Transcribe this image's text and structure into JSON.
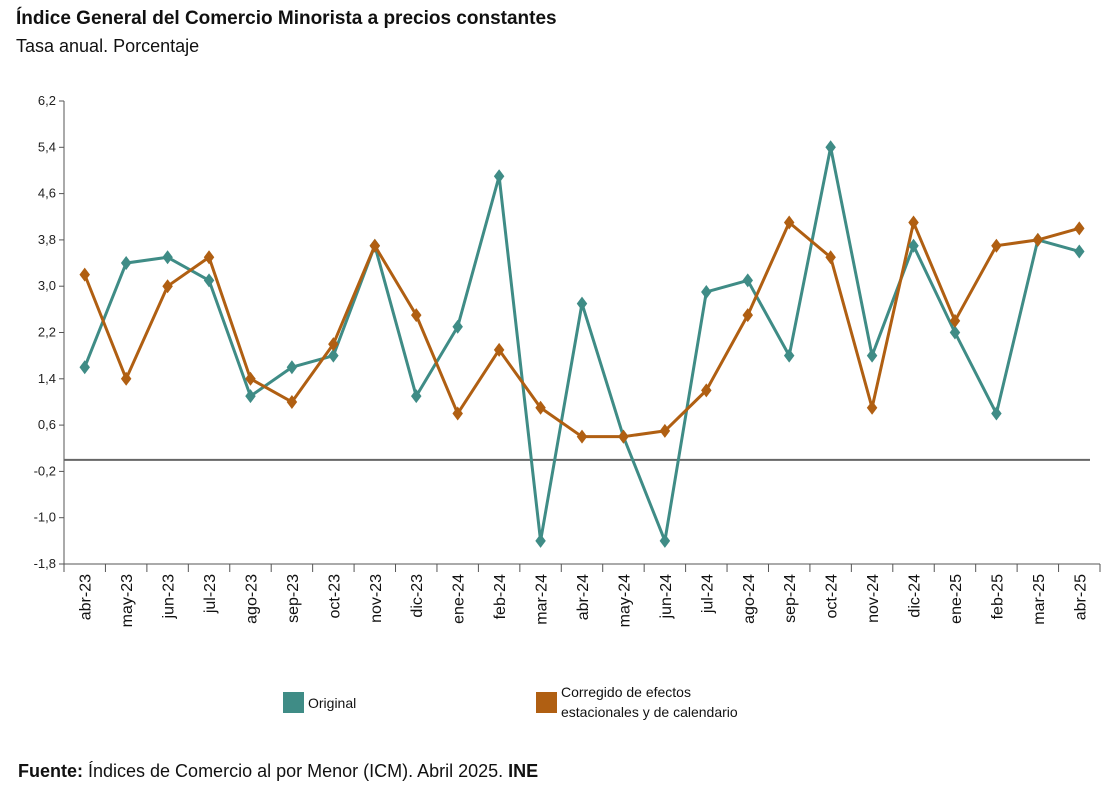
{
  "header": {
    "title": "Índice General del Comercio Minorista a precios constantes",
    "subtitle": "Tasa anual. Porcentaje"
  },
  "colors": {
    "original": "#3f8c86",
    "corrected": "#b05f12",
    "axis": "#555555",
    "zero_line": "#666666"
  },
  "legend": {
    "original": "Original",
    "corrected_line1": "Corregido de efectos",
    "corrected_line2": "estacionales y de calendario"
  },
  "source": {
    "label": "Fuente:",
    "text": " Índices de Comercio al por Menor (ICM).  Abril 2025. ",
    "org": "INE"
  },
  "chart_data": {
    "type": "line",
    "title": "Índice General del Comercio Minorista a precios constantes",
    "ylabel": "Tasa anual. Porcentaje",
    "ylim": [
      -1.8,
      6.2
    ],
    "yticks": [
      "6,2",
      "5,4",
      "4,6",
      "3,8",
      "3,0",
      "2,2",
      "1,4",
      "0,6",
      "-0,2",
      "-1,0",
      "-1,8"
    ],
    "ytick_values": [
      6.2,
      5.4,
      4.6,
      3.8,
      3.0,
      2.2,
      1.4,
      0.6,
      -0.2,
      -1.0,
      -1.8
    ],
    "reference_line": 0,
    "categories": [
      "abr-23",
      "may-23",
      "jun-23",
      "jul-23",
      "ago-23",
      "sep-23",
      "oct-23",
      "nov-23",
      "dic-23",
      "ene-24",
      "feb-24",
      "mar-24",
      "abr-24",
      "may-24",
      "jun-24",
      "jul-24",
      "ago-24",
      "sep-24",
      "oct-24",
      "nov-24",
      "dic-24",
      "ene-25",
      "feb-25",
      "mar-25",
      "abr-25"
    ],
    "series": [
      {
        "name": "Original",
        "values": [
          1.6,
          3.4,
          3.5,
          3.1,
          1.1,
          1.6,
          1.8,
          3.7,
          1.1,
          2.3,
          4.9,
          -1.4,
          2.7,
          0.4,
          -1.4,
          2.9,
          3.1,
          1.8,
          5.4,
          1.8,
          3.7,
          2.2,
          0.8,
          3.8,
          3.6
        ]
      },
      {
        "name": "Corregido de efectos estacionales y de calendario",
        "values": [
          3.2,
          1.4,
          3.0,
          3.5,
          1.4,
          1.0,
          2.0,
          3.7,
          2.5,
          0.8,
          1.9,
          0.9,
          0.4,
          0.4,
          0.5,
          1.2,
          2.5,
          4.1,
          3.5,
          0.9,
          4.1,
          2.4,
          3.7,
          3.8,
          4.0
        ]
      }
    ]
  }
}
